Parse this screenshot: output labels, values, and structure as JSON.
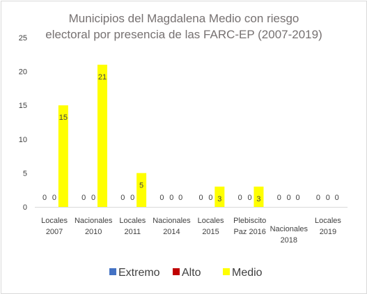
{
  "chart_data": {
    "type": "bar",
    "title_lines": [
      "Municipios del Magdalena Medio con riesgo",
      "electoral por presencia de las FARC-EP (2007-2019)"
    ],
    "xlabel": "",
    "ylabel": "",
    "ylim": [
      0,
      25
    ],
    "yticks": [
      0,
      5,
      10,
      15,
      20,
      25
    ],
    "grid": false,
    "legend_position": "bottom",
    "categories": [
      [
        "Locales",
        "2007"
      ],
      [
        "Nacionales",
        "2010"
      ],
      [
        "Locales",
        "2011"
      ],
      [
        "Nacionales",
        "2014"
      ],
      [
        "Locales",
        "2015"
      ],
      [
        "Plebiscito",
        "Paz 2016"
      ],
      [
        "Nacionales",
        "2018"
      ],
      [
        "Locales",
        "2019"
      ]
    ],
    "series": [
      {
        "name": "Extremo",
        "color": "#4472c4",
        "values": [
          0,
          0,
          0,
          0,
          0,
          0,
          0,
          0
        ]
      },
      {
        "name": "Alto",
        "color": "#c00000",
        "values": [
          0,
          0,
          0,
          0,
          0,
          0,
          0,
          0
        ]
      },
      {
        "name": "Medio",
        "color": "#ffff00",
        "values": [
          15,
          21,
          5,
          0,
          3,
          3,
          0,
          0
        ]
      }
    ]
  }
}
